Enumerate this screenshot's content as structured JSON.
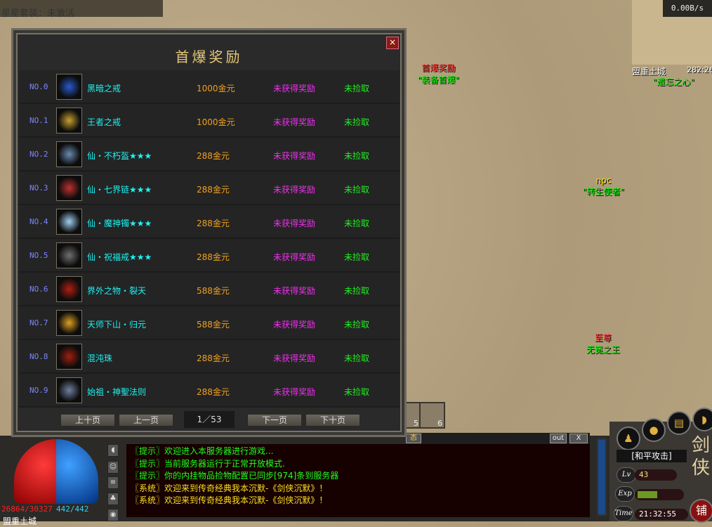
{
  "top_status": {
    "set_status": "星星套装：未激活"
  },
  "dialog": {
    "title": "首爆奖励",
    "close": "×",
    "rows": [
      {
        "no": "NO.0",
        "name": "黑暗之戒",
        "price": "1000金元",
        "status": "未获得奖励",
        "pickup": "未捡取",
        "icon": "dark-ring-icon",
        "icon_color": "#2a5ad0"
      },
      {
        "no": "NO.1",
        "name": "王者之戒",
        "price": "1000金元",
        "status": "未获得奖励",
        "pickup": "未捡取",
        "icon": "king-ring-icon",
        "icon_color": "#c8a030"
      },
      {
        "no": "NO.2",
        "name": "仙・不朽盔★★★",
        "price": "288金元",
        "status": "未获得奖励",
        "pickup": "未捡取",
        "icon": "helmet-icon",
        "icon_color": "#6a8ab0"
      },
      {
        "no": "NO.3",
        "name": "仙・七界链★★★",
        "price": "288金元",
        "status": "未获得奖励",
        "pickup": "未捡取",
        "icon": "necklace-icon",
        "icon_color": "#c03030"
      },
      {
        "no": "NO.4",
        "name": "仙・魔神镯★★★",
        "price": "288金元",
        "status": "未获得奖励",
        "pickup": "未捡取",
        "icon": "bracelet-icon",
        "icon_color": "#a0d0f0"
      },
      {
        "no": "NO.5",
        "name": "仙・祝福戒★★★",
        "price": "288金元",
        "status": "未获得奖励",
        "pickup": "未捡取",
        "icon": "blessing-ring-icon",
        "icon_color": "#707070"
      },
      {
        "no": "NO.6",
        "name": "界外之物・裂天",
        "price": "588金元",
        "status": "未获得奖励",
        "pickup": "未捡取",
        "icon": "blade-icon",
        "icon_color": "#b02010"
      },
      {
        "no": "NO.7",
        "name": "天师下山・归元",
        "price": "588金元",
        "status": "未获得奖励",
        "pickup": "未捡取",
        "icon": "wings-icon",
        "icon_color": "#e0a020"
      },
      {
        "no": "NO.8",
        "name": "混沌珠",
        "price": "288金元",
        "status": "未获得奖励",
        "pickup": "未捡取",
        "icon": "chaos-orb-icon",
        "icon_color": "#a02010"
      },
      {
        "no": "NO.9",
        "name": "始祖・神聖法则",
        "price": "288金元",
        "status": "未获得奖励",
        "pickup": "未捡取",
        "icon": "crystal-icon",
        "icon_color": "#7080a0"
      }
    ],
    "pager": {
      "first": "上十页",
      "prev": "上一页",
      "page": "1／53",
      "next": "下一页",
      "last": "下十页"
    }
  },
  "map": {
    "speed": "0.00B/s",
    "location": "盟重土城",
    "coords": "282:26"
  },
  "npcs": [
    {
      "title": "首爆奖励",
      "name": "\"装备首爆\""
    },
    {
      "title": "",
      "name": "\"遗忘之心\""
    },
    {
      "title": "npc",
      "name": "\"转生使者\""
    },
    {
      "title": "至尊",
      "name": "无冕之王"
    }
  ],
  "quickbar": [
    "5",
    "6"
  ],
  "chat": {
    "tab": "态",
    "out": "out",
    "close": "X",
    "messages": [
      {
        "text": "〖提示〗欢迎进入本服务器进行游戏...",
        "color": "#20ff20"
      },
      {
        "text": "〖提示〗当前服务器运行于正常开放模式.",
        "color": "#20ff20"
      },
      {
        "text": "〖提示〗你的内挂物品捡物配置已同步[974]条到服务器",
        "color": "#20ff20"
      },
      {
        "text": "〖系统〗欢迎来到传奇经典我本沉默-《剑侠沉默》！",
        "color": "#ffe020"
      },
      {
        "text": "〖系统〗欢迎来到传奇经典我本沉默-《剑侠沉默》！",
        "color": "#ffe020"
      }
    ]
  },
  "player": {
    "hp": "26864/30327",
    "mp": "442/442",
    "location": "盟重土城",
    "mode": "[和平攻击]",
    "level": "43",
    "exp_fraction": 0.45,
    "time": "21:32:55",
    "lv_label": "Lv",
    "exp_label": "Exp",
    "time_label": "Time",
    "shop": "铺",
    "logo": "剑侠沉默"
  }
}
